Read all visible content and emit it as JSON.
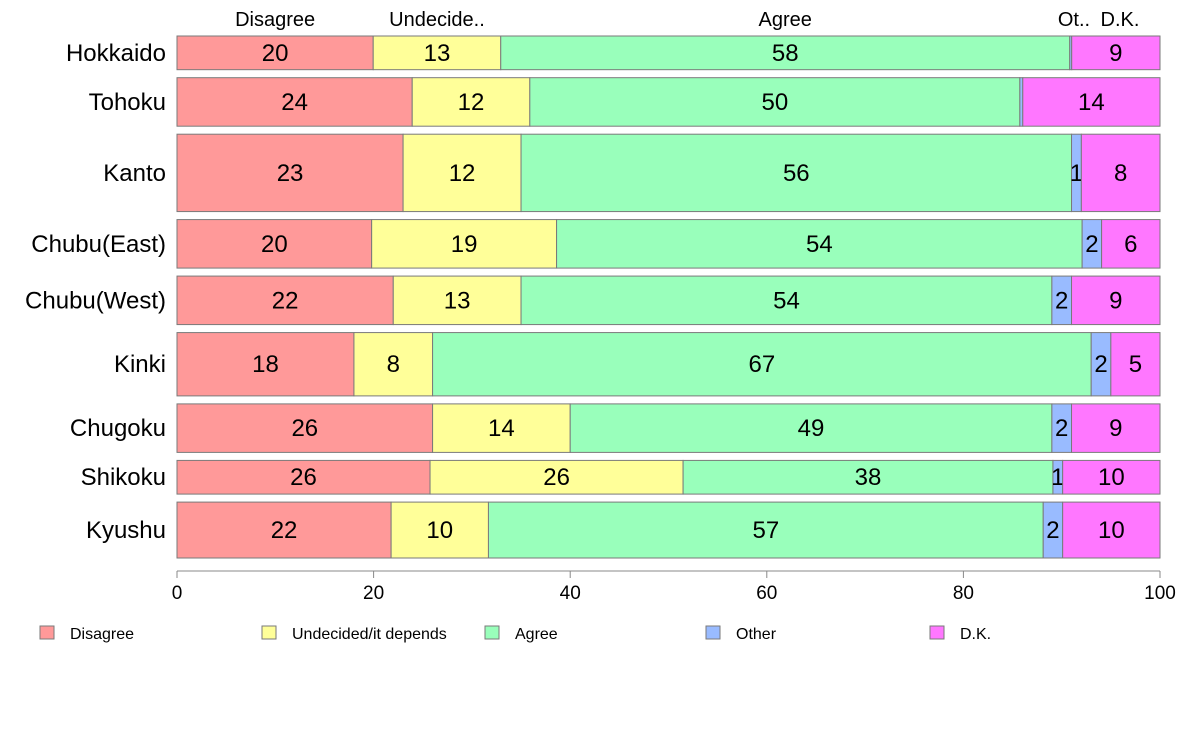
{
  "chart_data": {
    "type": "bar",
    "orientation": "horizontal",
    "stacked": true,
    "categories": [
      "Hokkaido",
      "Tohoku",
      "Kanto",
      "Chubu(East)",
      "Chubu(West)",
      "Kinki",
      "Chugoku",
      "Shikoku",
      "Kyushu"
    ],
    "series": [
      {
        "name": "Disagree",
        "color": "#ff9999",
        "values": [
          20,
          24,
          23,
          20,
          22,
          18,
          26,
          26,
          22
        ]
      },
      {
        "name": "Undecided/it depends",
        "color": "#ffff99",
        "values": [
          13,
          12,
          12,
          19,
          13,
          8,
          14,
          26,
          10
        ]
      },
      {
        "name": "Agree",
        "color": "#99ffbb",
        "values": [
          58,
          50,
          56,
          54,
          54,
          67,
          49,
          38,
          57
        ]
      },
      {
        "name": "Other",
        "color": "#99bbff",
        "values": [
          0.2,
          0.3,
          1,
          2,
          2,
          2,
          2,
          1,
          2
        ]
      },
      {
        "name": "D.K.",
        "color": "#ff77ff",
        "values": [
          9,
          14,
          8,
          6,
          9,
          5,
          9,
          10,
          10
        ]
      }
    ],
    "data_labels": [
      [
        "20",
        "13",
        "58",
        "",
        "9"
      ],
      [
        "24",
        "12",
        "50",
        "",
        "14"
      ],
      [
        "23",
        "12",
        "56",
        "1",
        "8"
      ],
      [
        "20",
        "19",
        "54",
        "2",
        "6"
      ],
      [
        "22",
        "13",
        "54",
        "2",
        "9"
      ],
      [
        "18",
        "8",
        "67",
        "2",
        "5"
      ],
      [
        "26",
        "14",
        "49",
        "2",
        "9"
      ],
      [
        "26",
        "26",
        "38",
        "1",
        "10"
      ],
      [
        "22",
        "10",
        "57",
        "2",
        "10"
      ]
    ],
    "row_weights": [
      0.91,
      1.31,
      2.09,
      1.31,
      1.31,
      1.71,
      1.31,
      0.91,
      1.51
    ],
    "top_labels": [
      "Disagree",
      "Undecide..",
      "Agree",
      "Ot..",
      "D.K."
    ],
    "xlim": [
      0,
      100
    ],
    "xticks": [
      0,
      20,
      40,
      60,
      80,
      100
    ],
    "xlabel": "",
    "ylabel": "",
    "title": "",
    "grid": false,
    "legend_position": "bottom"
  }
}
